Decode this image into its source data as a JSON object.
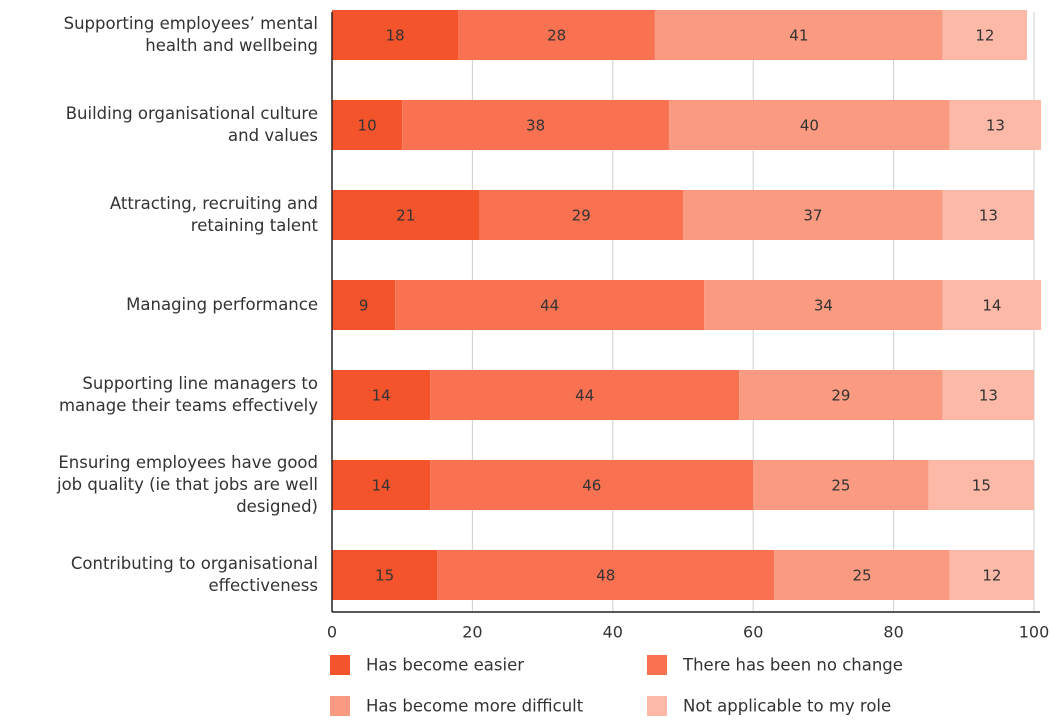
{
  "chart_data": {
    "type": "stacked_barh",
    "categories": [
      "Supporting employees’ mental\nhealth and wellbeing",
      "Building organisational culture\nand values",
      "Attracting, recruiting and\nretaining talent",
      "Managing performance",
      "Supporting line managers to\nmanage their teams effectively",
      "Ensuring employees have good\njob quality (ie that jobs are well\ndesigned)",
      "Contributing to organisational\neffectiveness"
    ],
    "series": [
      {
        "name": "Has become easier",
        "color": "#f4542c",
        "values": [
          18,
          10,
          21,
          9,
          14,
          14,
          15
        ]
      },
      {
        "name": "There has been no change",
        "color": "#f87252",
        "values": [
          28,
          38,
          29,
          44,
          44,
          46,
          48
        ]
      },
      {
        "name": "Has become more difficult",
        "color": "#fa9a80",
        "values": [
          41,
          40,
          37,
          34,
          29,
          25,
          25
        ]
      },
      {
        "name": "Not applicable to my role",
        "color": "#fcb9a7",
        "values": [
          12,
          13,
          13,
          14,
          13,
          15,
          12
        ]
      }
    ],
    "xlim": [
      0,
      100
    ],
    "xticks": [
      0,
      20,
      40,
      60,
      80,
      100
    ],
    "grid": true,
    "legend": "bottom"
  }
}
